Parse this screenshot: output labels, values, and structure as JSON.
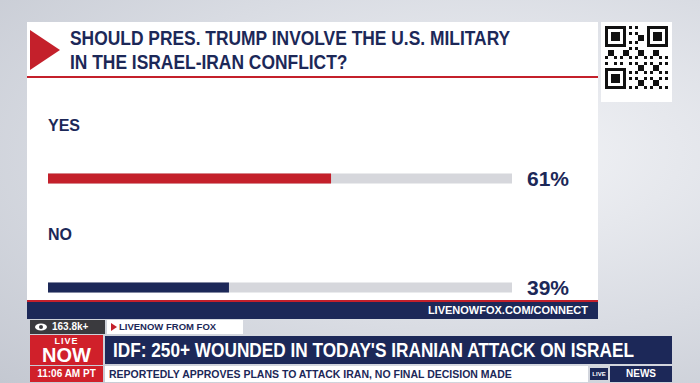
{
  "chart_data": {
    "type": "bar",
    "orientation": "horizontal",
    "title": "SHOULD PRES. TRUMP INVOLVE THE U.S. MILITARY\nIN THE ISRAEL-IRAN CONFLICT?",
    "categories": [
      "YES",
      "NO"
    ],
    "values": [
      61,
      39
    ],
    "value_labels": [
      "61%",
      "39%"
    ],
    "colors": [
      "#c4202b",
      "#1c2858"
    ],
    "xlim": [
      0,
      100
    ],
    "data_labels": true,
    "tick_labels": false,
    "grid": false
  },
  "screen": {
    "panel_footer": "LIVENOWFOX.COM/CONNECT",
    "viewers": "163.8k+",
    "tab": "LIVENOW FROM FOX",
    "logo_top": "LIVE",
    "logo_bottom": "NOW",
    "headline": "IDF: 250+ WOUNDED IN TODAY'S IRANIAN ATTACK ON ISRAEL",
    "time": "11:06 AM PT",
    "ticker": "REPORTEDLY APPROVES PLANS TO ATTACK IRAN, NO FINAL DECISION MADE",
    "badge": "LIVE",
    "network": "NEWS"
  }
}
